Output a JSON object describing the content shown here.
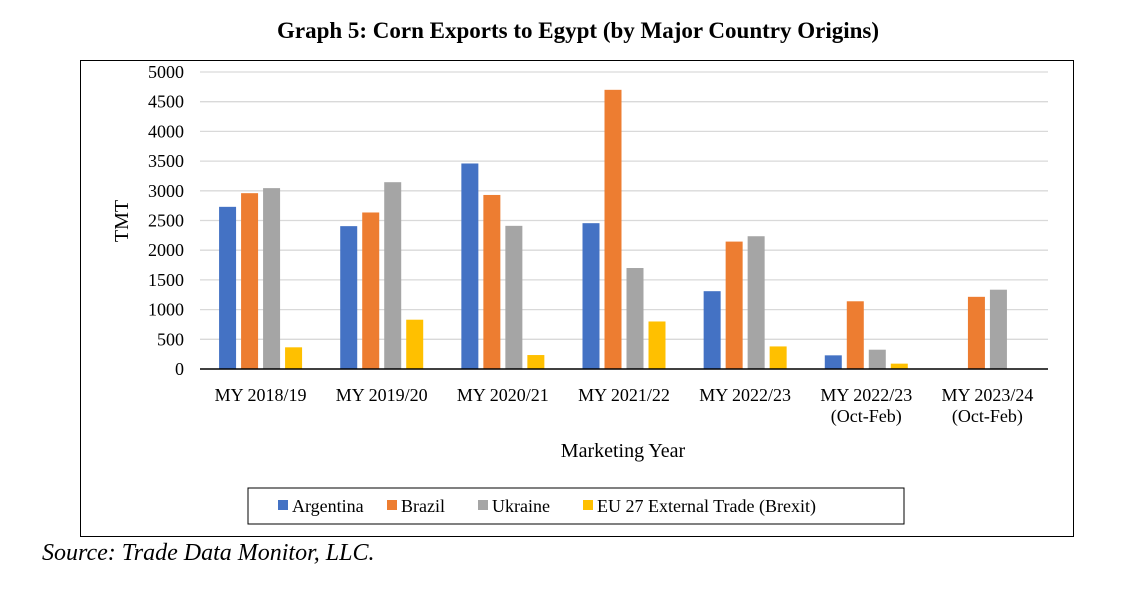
{
  "title": "Graph 5: Corn Exports to Egypt (by Major Country Origins)",
  "source": "Source: Trade Data Monitor, LLC.",
  "chart_data": {
    "type": "bar",
    "title": "Graph 5: Corn Exports to Egypt (by Major Country Origins)",
    "xlabel": "Marketing Year",
    "ylabel": "TMT",
    "ylim": [
      0,
      5000
    ],
    "yticks": [
      0,
      500,
      1000,
      1500,
      2000,
      2500,
      3000,
      3500,
      4000,
      4500,
      5000
    ],
    "grid": true,
    "legend": "bottom",
    "categories": [
      [
        "MY 2018/19"
      ],
      [
        "MY 2019/20"
      ],
      [
        "MY 2020/21"
      ],
      [
        "MY 2021/22"
      ],
      [
        "MY 2022/23"
      ],
      [
        "MY 2022/23",
        "(Oct-Feb)"
      ],
      [
        "MY 2023/24",
        "(Oct-Feb)"
      ]
    ],
    "series": [
      {
        "name": "Argentina",
        "color": "#4472C4",
        "values": [
          2730,
          2405,
          3460,
          2455,
          1310,
          230,
          0
        ]
      },
      {
        "name": "Brazil",
        "color": "#ED7D31",
        "values": [
          2960,
          2635,
          2930,
          4700,
          2145,
          1140,
          1215
        ]
      },
      {
        "name": "Ukraine",
        "color": "#A5A5A5",
        "values": [
          3045,
          3145,
          2410,
          1700,
          2235,
          325,
          1335
        ]
      },
      {
        "name": "EU 27 External Trade (Brexit)",
        "color": "#FFC000",
        "values": [
          365,
          830,
          235,
          800,
          380,
          90,
          0
        ]
      }
    ]
  }
}
